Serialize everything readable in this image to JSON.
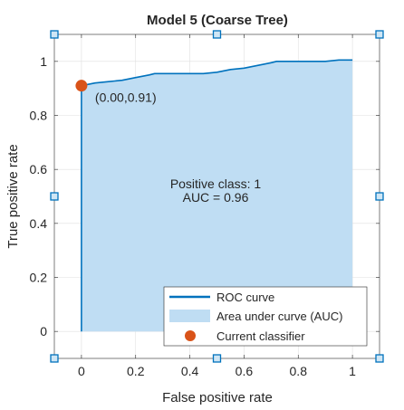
{
  "chart_data": {
    "type": "line",
    "title": "Model 5 (Coarse Tree)",
    "xlabel": "False positive rate",
    "ylabel": "True positive rate",
    "xlim": [
      -0.1,
      1.1
    ],
    "ylim": [
      -0.1,
      1.1
    ],
    "xticks": [
      "0",
      "0.2",
      "0.4",
      "0.6",
      "0.8",
      "1"
    ],
    "yticks": [
      "0",
      "0.2",
      "0.4",
      "0.6",
      "0.8",
      "1"
    ],
    "grid": true,
    "series": [
      {
        "name": "ROC curve",
        "x": [
          0,
          0,
          0.05,
          0.1,
          0.15,
          0.2,
          0.25,
          0.27,
          0.35,
          0.4,
          0.45,
          0.5,
          0.55,
          0.6,
          0.65,
          0.7,
          0.72,
          0.8,
          0.9,
          0.95,
          1
        ],
        "y": [
          0,
          0.91,
          0.92,
          0.925,
          0.93,
          0.94,
          0.95,
          0.955,
          0.955,
          0.955,
          0.955,
          0.96,
          0.97,
          0.975,
          0.985,
          0.995,
          1,
          1,
          1,
          1.005,
          1.005
        ]
      }
    ],
    "area_label": "Area under curve (AUC)",
    "current_classifier": {
      "name": "Current classifier",
      "x": 0.0,
      "y": 0.91,
      "label": "(0.00,0.91)"
    },
    "annotation_lines": [
      "Positive class: 1",
      "AUC = 0.96"
    ],
    "legend_position": "bottom-right",
    "colors": {
      "curve": "#0072bd",
      "area": "#bfddf3",
      "marker": "#d95319",
      "handle": "#0072bd"
    }
  }
}
